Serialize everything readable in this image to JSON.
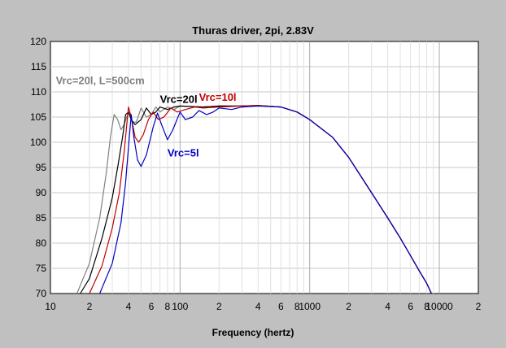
{
  "chart_data": {
    "type": "line",
    "title": "Thuras driver, 2pi, 2.83V",
    "xlabel": "Frequency (hertz)",
    "ylabel": "",
    "x_scale": "log",
    "xlim": [
      10,
      20000
    ],
    "ylim": [
      70,
      120
    ],
    "grid": true,
    "y_ticks": [
      70,
      75,
      80,
      85,
      90,
      95,
      100,
      105,
      110,
      115,
      120
    ],
    "x_ticks": [
      {
        "value": 10,
        "label": "10"
      },
      {
        "value": 20,
        "label": "2"
      },
      {
        "value": 40,
        "label": "4"
      },
      {
        "value": 60,
        "label": "6"
      },
      {
        "value": 80,
        "label": "8"
      },
      {
        "value": 100,
        "label": "100"
      },
      {
        "value": 200,
        "label": "2"
      },
      {
        "value": 400,
        "label": "4"
      },
      {
        "value": 600,
        "label": "6"
      },
      {
        "value": 800,
        "label": "8"
      },
      {
        "value": 1000,
        "label": "1000"
      },
      {
        "value": 2000,
        "label": "2"
      },
      {
        "value": 4000,
        "label": "4"
      },
      {
        "value": 6000,
        "label": "6"
      },
      {
        "value": 8000,
        "label": "8"
      },
      {
        "value": 10000,
        "label": "10000"
      },
      {
        "value": 20000,
        "label": "2"
      }
    ],
    "series": [
      {
        "name": "Vrc=20l, L=500cm",
        "color": "#808080",
        "points": [
          [
            16,
            70
          ],
          [
            20,
            76
          ],
          [
            24,
            85
          ],
          [
            27,
            94
          ],
          [
            29,
            101
          ],
          [
            31,
            105.5
          ],
          [
            33,
            104.5
          ],
          [
            35,
            102.5
          ],
          [
            37,
            103.5
          ],
          [
            40,
            106
          ],
          [
            43,
            104
          ],
          [
            46,
            104
          ],
          [
            50,
            106.8
          ],
          [
            55,
            105
          ],
          [
            60,
            105.5
          ],
          [
            65,
            107
          ],
          [
            70,
            106
          ],
          [
            80,
            107
          ],
          [
            90,
            106.5
          ],
          [
            100,
            107.2
          ],
          [
            150,
            107
          ],
          [
            200,
            107.2
          ],
          [
            300,
            107.2
          ],
          [
            400,
            107.3
          ],
          [
            600,
            107
          ],
          [
            800,
            106
          ],
          [
            1000,
            104.5
          ],
          [
            1500,
            101
          ],
          [
            2000,
            97
          ],
          [
            3000,
            90
          ],
          [
            4000,
            85
          ],
          [
            5000,
            81
          ],
          [
            6000,
            77.5
          ],
          [
            7000,
            74.5
          ],
          [
            8000,
            72
          ],
          [
            8700,
            70
          ]
        ]
      },
      {
        "name": "Vrc=20l",
        "color": "#000000",
        "points": [
          [
            17,
            70
          ],
          [
            20,
            73
          ],
          [
            25,
            81
          ],
          [
            30,
            89
          ],
          [
            33,
            95
          ],
          [
            36,
            101
          ],
          [
            38,
            105.5
          ],
          [
            40,
            106
          ],
          [
            42,
            104.5
          ],
          [
            45,
            103.5
          ],
          [
            50,
            104.5
          ],
          [
            55,
            106.8
          ],
          [
            60,
            105.5
          ],
          [
            65,
            106
          ],
          [
            70,
            107
          ],
          [
            80,
            106.5
          ],
          [
            90,
            107
          ],
          [
            100,
            107.2
          ],
          [
            150,
            107
          ],
          [
            200,
            107.2
          ],
          [
            300,
            107.2
          ],
          [
            400,
            107.3
          ],
          [
            600,
            107
          ],
          [
            800,
            106
          ],
          [
            1000,
            104.5
          ],
          [
            1500,
            101
          ],
          [
            2000,
            97
          ],
          [
            3000,
            90
          ],
          [
            4000,
            85
          ],
          [
            5000,
            81
          ],
          [
            6000,
            77.5
          ],
          [
            7000,
            74.5
          ],
          [
            8000,
            72
          ],
          [
            8700,
            70
          ]
        ]
      },
      {
        "name": "Vrc=10l",
        "color": "#c00000",
        "points": [
          [
            20,
            70
          ],
          [
            25,
            75.5
          ],
          [
            30,
            83
          ],
          [
            34,
            90
          ],
          [
            37,
            98
          ],
          [
            40,
            107
          ],
          [
            42,
            105
          ],
          [
            45,
            101
          ],
          [
            48,
            100
          ],
          [
            52,
            101.5
          ],
          [
            57,
            104.5
          ],
          [
            62,
            106
          ],
          [
            68,
            104.5
          ],
          [
            75,
            105
          ],
          [
            85,
            106.8
          ],
          [
            95,
            106
          ],
          [
            110,
            106.5
          ],
          [
            130,
            107
          ],
          [
            150,
            106.8
          ],
          [
            200,
            107
          ],
          [
            300,
            107.2
          ],
          [
            400,
            107.3
          ],
          [
            600,
            107
          ],
          [
            800,
            106
          ],
          [
            1000,
            104.5
          ],
          [
            1500,
            101
          ],
          [
            2000,
            97
          ],
          [
            3000,
            90
          ],
          [
            4000,
            85
          ],
          [
            5000,
            81
          ],
          [
            6000,
            77.5
          ],
          [
            7000,
            74.5
          ],
          [
            8000,
            72
          ],
          [
            8700,
            70
          ]
        ]
      },
      {
        "name": "Vrc=5l",
        "color": "#0000c0",
        "points": [
          [
            24,
            70
          ],
          [
            30,
            76
          ],
          [
            35,
            84
          ],
          [
            38,
            92
          ],
          [
            40,
            99
          ],
          [
            42,
            105.5
          ],
          [
            44,
            101
          ],
          [
            47,
            96.5
          ],
          [
            50,
            95.2
          ],
          [
            55,
            97.5
          ],
          [
            62,
            103
          ],
          [
            67,
            105.8
          ],
          [
            72,
            103.5
          ],
          [
            80,
            100.5
          ],
          [
            88,
            102.5
          ],
          [
            100,
            106
          ],
          [
            110,
            104.5
          ],
          [
            125,
            105
          ],
          [
            140,
            106.3
          ],
          [
            160,
            105.5
          ],
          [
            180,
            106
          ],
          [
            200,
            106.8
          ],
          [
            250,
            106.5
          ],
          [
            300,
            107
          ],
          [
            400,
            107.2
          ],
          [
            600,
            107
          ],
          [
            800,
            106
          ],
          [
            1000,
            104.5
          ],
          [
            1500,
            101
          ],
          [
            2000,
            97
          ],
          [
            3000,
            90
          ],
          [
            4000,
            85
          ],
          [
            5000,
            81
          ],
          [
            6000,
            77.5
          ],
          [
            7000,
            74.5
          ],
          [
            8000,
            72
          ],
          [
            8700,
            70
          ]
        ]
      }
    ],
    "annotations": [
      {
        "text": "Vrc=20l, L=500cm",
        "x": 11,
        "y": 111.5,
        "color": "#808080"
      },
      {
        "text": "Vrc=20l",
        "x": 70,
        "y": 107.8,
        "color": "#000000"
      },
      {
        "text": "Vrc=10l",
        "x": 140,
        "y": 108.2,
        "color": "#c00000"
      },
      {
        "text": "Vrc=5l",
        "x": 80,
        "y": 97.2,
        "color": "#0000c0"
      }
    ]
  }
}
